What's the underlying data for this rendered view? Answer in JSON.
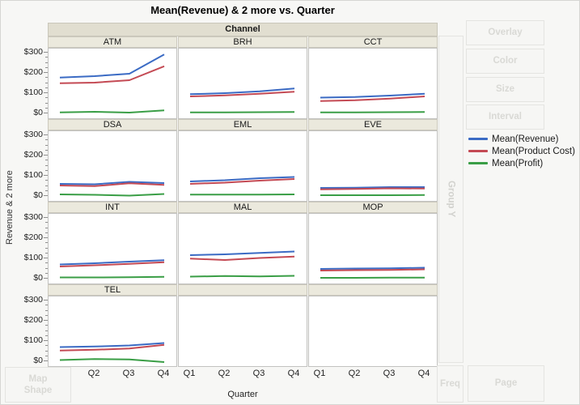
{
  "title": "Mean(Revenue) & 2 more vs. Quarter",
  "facet_header": "Channel",
  "axes": {
    "x_label": "Quarter",
    "x_ticks": [
      "Q1",
      "Q2",
      "Q3",
      "Q4"
    ],
    "y_label": "Revenue & 2 more",
    "y_ticks": [
      "$0",
      "$100",
      "$200",
      "$300"
    ],
    "y_min": 0,
    "y_max": 300
  },
  "legend": {
    "items": [
      {
        "label": "Mean(Revenue)",
        "color": "#3b6bc4"
      },
      {
        "label": "Mean(Product Cost)",
        "color": "#c44a54"
      },
      {
        "label": "Mean(Profit)",
        "color": "#3a9e46"
      }
    ]
  },
  "drop_zones": {
    "overlay": "Overlay",
    "color": "Color",
    "size": "Size",
    "interval": "Interval",
    "group_y": "Group Y",
    "freq": "Freq",
    "page": "Page",
    "map_shape_line1": "Map",
    "map_shape_line2": "Shape"
  },
  "chart_data": {
    "type": "line",
    "facet": "Channel",
    "x": [
      "Q1",
      "Q2",
      "Q3",
      "Q4"
    ],
    "ylim": [
      0,
      300
    ],
    "series_names": [
      "Mean(Revenue)",
      "Mean(Product Cost)",
      "Mean(Profit)"
    ],
    "panels": [
      {
        "channel": "ATM",
        "revenue": [
          177,
          184,
          196,
          291
        ],
        "product_cost": [
          149,
          152,
          164,
          233
        ],
        "profit": [
          5,
          8,
          4,
          15
        ]
      },
      {
        "channel": "BRH",
        "revenue": [
          95,
          100,
          109,
          123
        ],
        "product_cost": [
          84,
          89,
          97,
          107
        ],
        "profit": [
          5,
          5,
          6,
          7
        ]
      },
      {
        "channel": "CCT",
        "revenue": [
          78,
          81,
          88,
          97
        ],
        "product_cost": [
          61,
          65,
          73,
          84
        ],
        "profit": [
          5,
          5,
          6,
          7
        ]
      },
      {
        "channel": "DSA",
        "revenue": [
          60,
          58,
          70,
          64
        ],
        "product_cost": [
          52,
          49,
          63,
          55
        ],
        "profit": [
          8,
          6,
          2,
          10
        ]
      },
      {
        "channel": "EML",
        "revenue": [
          72,
          78,
          88,
          94
        ],
        "product_cost": [
          60,
          66,
          76,
          84
        ],
        "profit": [
          7,
          7,
          7,
          8
        ]
      },
      {
        "channel": "EVE",
        "revenue": [
          40,
          41,
          44,
          44
        ],
        "product_cost": [
          33,
          35,
          38,
          37
        ],
        "profit": [
          4,
          4,
          4,
          5
        ]
      },
      {
        "channel": "INT",
        "revenue": [
          70,
          76,
          84,
          91
        ],
        "product_cost": [
          60,
          66,
          73,
          81
        ],
        "profit": [
          6,
          6,
          7,
          9
        ]
      },
      {
        "channel": "MAL",
        "revenue": [
          116,
          120,
          127,
          134
        ],
        "product_cost": [
          99,
          92,
          102,
          109
        ],
        "profit": [
          10,
          13,
          11,
          14
        ]
      },
      {
        "channel": "MOP",
        "revenue": [
          48,
          50,
          51,
          54
        ],
        "product_cost": [
          40,
          42,
          43,
          46
        ],
        "profit": [
          4,
          4,
          5,
          5
        ]
      },
      {
        "channel": "TEL",
        "revenue": [
          70,
          73,
          78,
          90
        ],
        "product_cost": [
          53,
          57,
          63,
          81
        ],
        "profit": [
          6,
          11,
          9,
          -4
        ]
      }
    ],
    "empty_panel_count": 2
  }
}
